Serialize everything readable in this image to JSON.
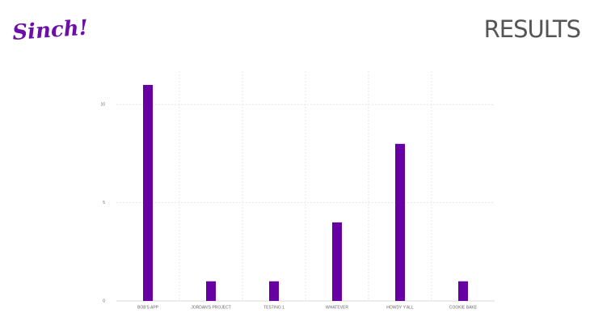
{
  "logo": "Sinch!",
  "chart_data": {
    "type": "bar",
    "title": "RESULTS",
    "categories": [
      "BOB'S APP",
      "JORDAN'S PROJECT",
      "TESTING 1",
      "WHATEVER",
      "HOWDY Y'ALL",
      "COOKIE BAKE"
    ],
    "values": [
      11,
      1,
      1,
      4,
      8,
      1
    ],
    "color": "#6600a3",
    "ylim": [
      0,
      11.7
    ],
    "yticks": [
      0,
      5,
      10
    ],
    "grid": true
  }
}
